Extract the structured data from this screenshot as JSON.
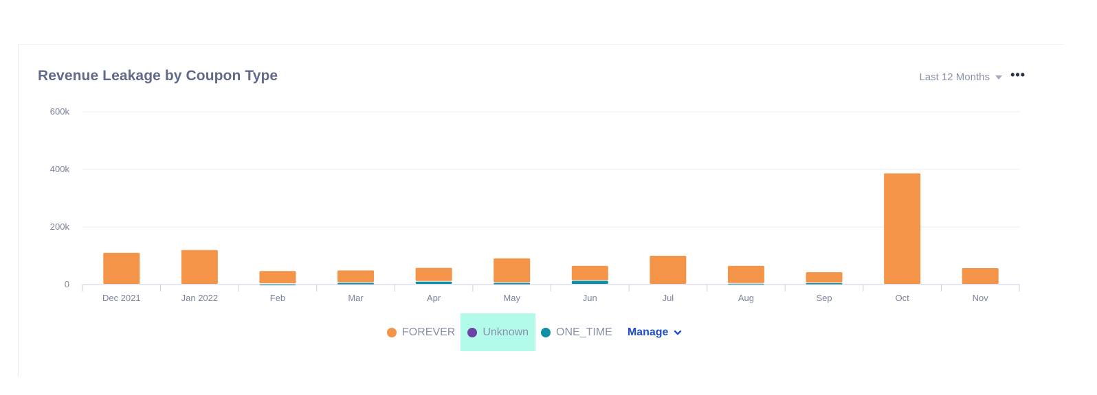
{
  "header": {
    "title": "Revenue Leakage by Coupon Type",
    "period_label": "Last 12 Months",
    "more_label": "•••"
  },
  "legend": {
    "items": [
      {
        "name": "FOREVER",
        "color": "#f39449"
      },
      {
        "name": "Unknown",
        "color": "#6b43a6"
      },
      {
        "name": "ONE_TIME",
        "color": "#0f8ea6"
      }
    ],
    "manage_label": "Manage",
    "manage_icon": "chevron-down-icon"
  },
  "chart_data": {
    "type": "bar",
    "stacked": true,
    "title": "Revenue Leakage by Coupon Type",
    "categories": [
      "Dec 2021",
      "Jan 2022",
      "Feb",
      "Mar",
      "Apr",
      "May",
      "Jun",
      "Jul",
      "Aug",
      "Sep",
      "Oct",
      "Nov"
    ],
    "series": [
      {
        "name": "ONE_TIME",
        "color": "#0f8ea6",
        "values": [
          0,
          0,
          2000,
          6000,
          10000,
          6000,
          13000,
          0,
          3000,
          5000,
          0,
          0
        ]
      },
      {
        "name": "Unknown",
        "color": "#6b43a6",
        "values": [
          0,
          0,
          0,
          0,
          0,
          0,
          0,
          0,
          0,
          0,
          0,
          0
        ]
      },
      {
        "name": "FOREVER",
        "color": "#f39449",
        "values": [
          110000,
          120000,
          45000,
          43000,
          48000,
          85000,
          52000,
          100000,
          62000,
          38000,
          386000,
          57000
        ]
      }
    ],
    "ylim": [
      0,
      600000
    ],
    "yticks": [
      0,
      200000,
      400000,
      600000
    ],
    "ytick_labels": [
      "0",
      "200k",
      "400k",
      "600k"
    ],
    "grid": true,
    "legend_position": "bottom-center"
  }
}
